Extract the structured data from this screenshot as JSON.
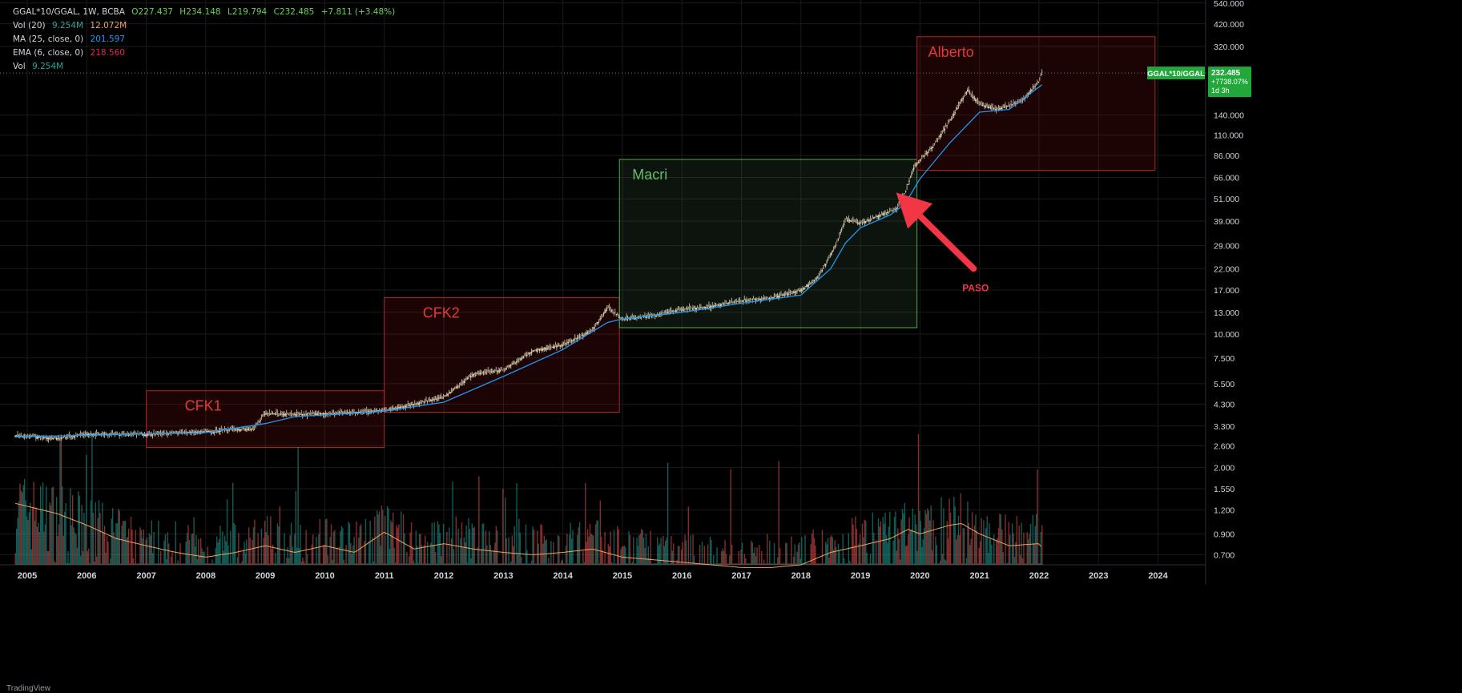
{
  "legend": {
    "symbol": "GGAL*10/GGAL, 1W, BCBA",
    "open": "O227.437",
    "high": "H234.148",
    "low": "L219.794",
    "close": "C232.485",
    "change": "+7.811 (+3.48%)",
    "vol20_label": "Vol (20)",
    "vol20_v1": "9.254M",
    "vol20_v2": "12.072M",
    "ma_label": "MA (25, close, 0)",
    "ma_value": "201.597",
    "ema_label": "EMA (6, close, 0)",
    "ema_value": "218.560",
    "vol_label": "Vol",
    "vol_value": "9.254M"
  },
  "price_label": {
    "symbol": "GGAL*10/GGAL",
    "value": "232.485",
    "change": "+7738.07%",
    "countdown": "1d 3h"
  },
  "footer": "TradingView",
  "colors": {
    "background": "#000000",
    "up": "#26a69a",
    "down": "#ef5350",
    "candle": "#d8d0b0",
    "ma": "#2196f3",
    "vol_ma": "#f0a060",
    "red_zone": "#b22222",
    "green_zone": "#4caf50",
    "label_green": "#22a83a"
  },
  "chart_data": {
    "type": "line",
    "scale": "log",
    "grid": true,
    "x_ticks": [
      "2005",
      "2006",
      "2007",
      "2008",
      "2009",
      "2010",
      "2011",
      "2012",
      "2013",
      "2014",
      "2015",
      "2016",
      "2017",
      "2018",
      "2019",
      "2020",
      "2021",
      "2022",
      "2023",
      "2024"
    ],
    "y_ticks": [
      "540.000",
      "420.000",
      "320.000",
      "140.000",
      "110.000",
      "86.000",
      "66.000",
      "51.000",
      "39.000",
      "29.000",
      "22.000",
      "17.000",
      "13.000",
      "10.000",
      "7.500",
      "5.500",
      "4.300",
      "3.300",
      "2.600",
      "2.000",
      "1.550",
      "1.200",
      "0.900",
      "0.700"
    ],
    "xlim": [
      2004.65,
      2024.8
    ],
    "ylim": [
      0.62,
      560
    ],
    "price_series": [
      [
        2004.8,
        2.95
      ],
      [
        2005.5,
        2.85
      ],
      [
        2006.0,
        3.0
      ],
      [
        2007.0,
        3.0
      ],
      [
        2008.0,
        3.1
      ],
      [
        2008.8,
        3.2
      ],
      [
        2009.0,
        3.85
      ],
      [
        2009.5,
        3.8
      ],
      [
        2010.5,
        3.9
      ],
      [
        2011.0,
        4.0
      ],
      [
        2011.5,
        4.3
      ],
      [
        2012.0,
        4.7
      ],
      [
        2012.5,
        6.2
      ],
      [
        2013.0,
        6.5
      ],
      [
        2013.5,
        8.2
      ],
      [
        2014.0,
        8.8
      ],
      [
        2014.5,
        10.5
      ],
      [
        2014.75,
        13.8
      ],
      [
        2015.0,
        12.0
      ],
      [
        2015.5,
        12.5
      ],
      [
        2016.0,
        13.5
      ],
      [
        2016.5,
        14.0
      ],
      [
        2017.0,
        15.0
      ],
      [
        2017.5,
        15.5
      ],
      [
        2018.0,
        17.0
      ],
      [
        2018.3,
        20.0
      ],
      [
        2018.6,
        30.0
      ],
      [
        2018.75,
        40.0
      ],
      [
        2019.0,
        38.0
      ],
      [
        2019.4,
        43.0
      ],
      [
        2019.6,
        45.0
      ],
      [
        2019.75,
        55.0
      ],
      [
        2019.9,
        75.0
      ],
      [
        2020.2,
        95.0
      ],
      [
        2020.5,
        130.0
      ],
      [
        2020.8,
        190.0
      ],
      [
        2021.0,
        160.0
      ],
      [
        2021.3,
        150.0
      ],
      [
        2021.7,
        165.0
      ],
      [
        2022.0,
        210.0
      ],
      [
        2022.05,
        232.485
      ]
    ],
    "ma_series": [
      [
        2004.8,
        2.9
      ],
      [
        2006.0,
        2.95
      ],
      [
        2007.0,
        3.0
      ],
      [
        2008.0,
        3.05
      ],
      [
        2009.0,
        3.4
      ],
      [
        2009.5,
        3.7
      ],
      [
        2010.5,
        3.85
      ],
      [
        2011.0,
        3.95
      ],
      [
        2012.0,
        4.4
      ],
      [
        2013.0,
        6.0
      ],
      [
        2014.0,
        8.3
      ],
      [
        2014.75,
        11.5
      ],
      [
        2015.0,
        12.0
      ],
      [
        2016.0,
        13.0
      ],
      [
        2017.0,
        14.5
      ],
      [
        2018.0,
        16.0
      ],
      [
        2018.5,
        22.0
      ],
      [
        2018.75,
        30.0
      ],
      [
        2019.0,
        36.0
      ],
      [
        2019.5,
        42.0
      ],
      [
        2019.75,
        48.0
      ],
      [
        2020.0,
        65.0
      ],
      [
        2020.5,
        100.0
      ],
      [
        2021.0,
        145.0
      ],
      [
        2021.5,
        150.0
      ],
      [
        2022.05,
        201.597
      ]
    ],
    "volume_series": [
      [
        2004.8,
        1.3
      ],
      [
        2005.5,
        1.15
      ],
      [
        2006.0,
        1.0
      ],
      [
        2006.5,
        0.85
      ],
      [
        2007.0,
        0.78
      ],
      [
        2007.5,
        0.72
      ],
      [
        2008.0,
        0.68
      ],
      [
        2008.5,
        0.72
      ],
      [
        2009.0,
        0.78
      ],
      [
        2009.5,
        0.72
      ],
      [
        2010.0,
        0.78
      ],
      [
        2010.5,
        0.72
      ],
      [
        2011.0,
        0.92
      ],
      [
        2011.5,
        0.75
      ],
      [
        2012.0,
        0.8
      ],
      [
        2012.5,
        0.75
      ],
      [
        2013.0,
        0.72
      ],
      [
        2013.5,
        0.7
      ],
      [
        2014.0,
        0.72
      ],
      [
        2014.5,
        0.75
      ],
      [
        2015.0,
        0.68
      ],
      [
        2016.0,
        0.64
      ],
      [
        2017.0,
        0.6
      ],
      [
        2017.5,
        0.6
      ],
      [
        2018.0,
        0.62
      ],
      [
        2018.5,
        0.72
      ],
      [
        2019.0,
        0.78
      ],
      [
        2019.5,
        0.85
      ],
      [
        2019.8,
        0.95
      ],
      [
        2020.0,
        0.9
      ],
      [
        2020.5,
        1.0
      ],
      [
        2020.7,
        1.02
      ],
      [
        2021.0,
        0.9
      ],
      [
        2021.5,
        0.78
      ],
      [
        2022.0,
        0.8
      ],
      [
        2022.05,
        0.76
      ]
    ],
    "zones": [
      {
        "label": "CFK1",
        "x0": 2007.0,
        "x1": 2011.0,
        "y0": 2.55,
        "y1": 5.05,
        "color": "red"
      },
      {
        "label": "CFK2",
        "x0": 2011.0,
        "x1": 2014.95,
        "y0": 3.9,
        "y1": 15.5,
        "color": "red"
      },
      {
        "label": "Macri",
        "x0": 2014.95,
        "x1": 2019.95,
        "y0": 10.8,
        "y1": 82.0,
        "color": "green"
      },
      {
        "label": "Alberto",
        "x0": 2019.95,
        "x1": 2023.95,
        "y0": 72.0,
        "y1": 360.0,
        "color": "red"
      }
    ],
    "annotation": {
      "label": "PASO",
      "from": [
        2020.9,
        22.0
      ],
      "to": [
        2019.6,
        55.0
      ]
    }
  }
}
